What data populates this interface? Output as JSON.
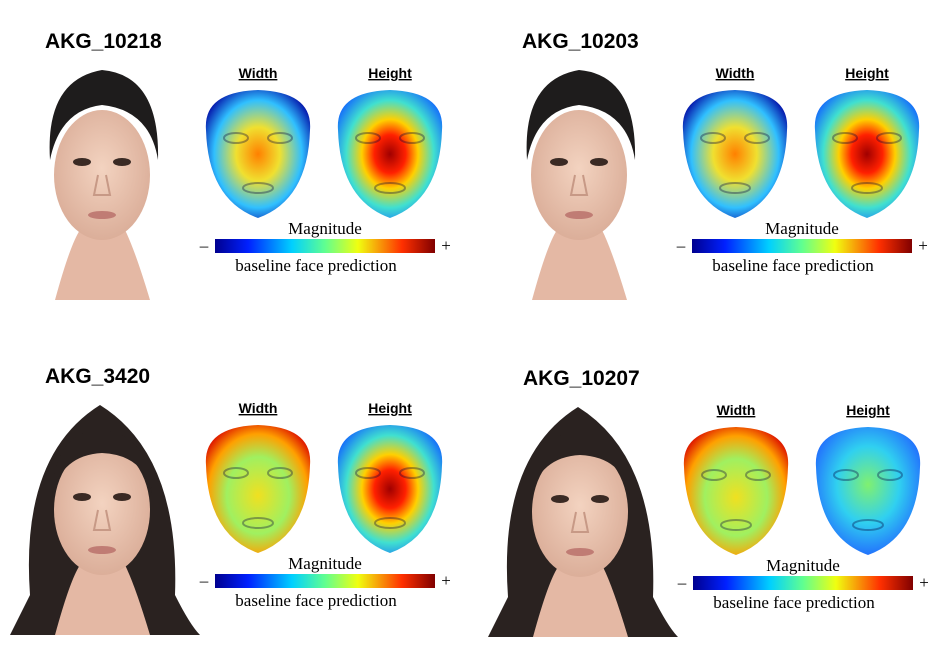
{
  "panels": [
    {
      "id": "AKG_10218",
      "width_label": "Width",
      "height_label": "Height",
      "colorbar": {
        "title": "Magnitude",
        "min_label": "–",
        "max_label": "+",
        "caption": "baseline face prediction"
      }
    },
    {
      "id": "AKG_10203",
      "width_label": "Width",
      "height_label": "Height",
      "colorbar": {
        "title": "Magnitude",
        "min_label": "–",
        "max_label": "+",
        "caption": "baseline face prediction"
      }
    },
    {
      "id": "AKG_3420",
      "width_label": "Width",
      "height_label": "Height",
      "colorbar": {
        "title": "Magnitude",
        "min_label": "–",
        "max_label": "+",
        "caption": "baseline face prediction"
      }
    },
    {
      "id": "AKG_10207",
      "width_label": "Width",
      "height_label": "Height",
      "colorbar": {
        "title": "Magnitude",
        "min_label": "–",
        "max_label": "+",
        "caption": "baseline face prediction"
      }
    }
  ]
}
